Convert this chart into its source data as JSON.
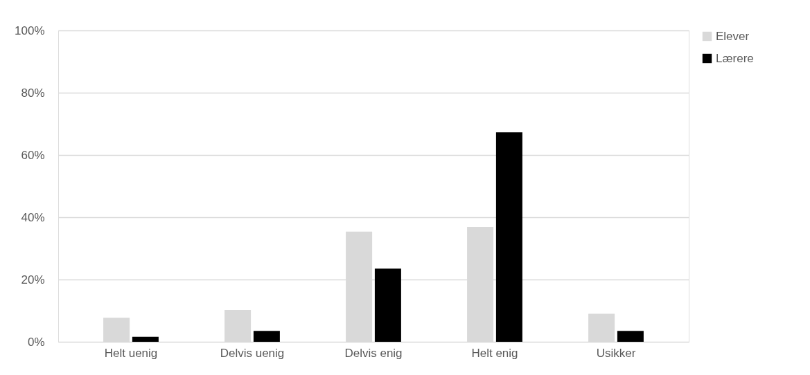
{
  "chart_data": {
    "type": "bar",
    "categories": [
      "Helt uenig",
      "Delvis uenig",
      "Delvis enig",
      "Helt enig",
      "Usikker"
    ],
    "series": [
      {
        "name": "Elever",
        "color": "#d9d9d9",
        "values": [
          7.7,
          10.2,
          35.4,
          36.9,
          9.0
        ]
      },
      {
        "name": "Lærere",
        "color": "#000000",
        "values": [
          1.6,
          3.5,
          23.5,
          67.3,
          3.5
        ]
      }
    ],
    "ylim": [
      0,
      100
    ],
    "yticks": [
      {
        "value": 0,
        "label": "0%"
      },
      {
        "value": 20,
        "label": "20%"
      },
      {
        "value": 40,
        "label": "40%"
      },
      {
        "value": 60,
        "label": "60%"
      },
      {
        "value": 80,
        "label": "80%"
      },
      {
        "value": 100,
        "label": "100%"
      }
    ],
    "grid": "y",
    "legend": "right"
  }
}
